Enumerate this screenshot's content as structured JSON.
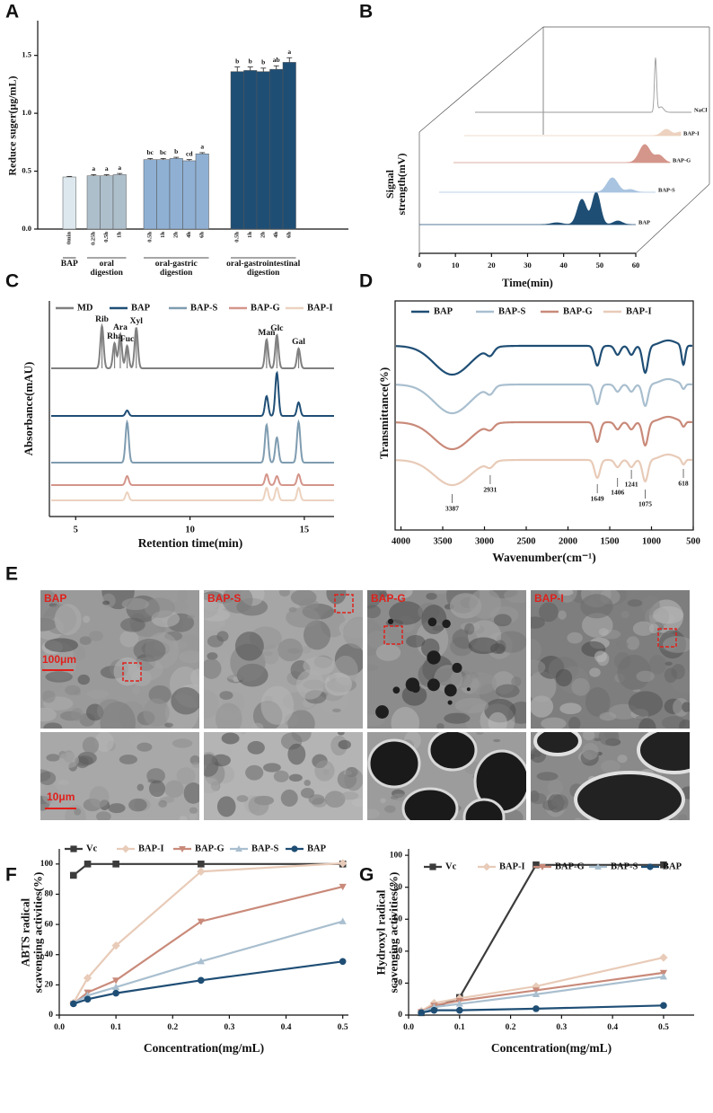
{
  "chart_data": [
    {
      "label": "A",
      "type": "bar",
      "ylabel": "Reduce suger(μg/mL)",
      "ylim": [
        0,
        1.8
      ],
      "yticks": [
        {
          "value": 0,
          "label": "0.0"
        },
        {
          "value": 0.5,
          "label": "0.5"
        },
        {
          "value": 1,
          "label": "1.0"
        },
        {
          "value": 1.5,
          "label": "1.5"
        }
      ],
      "groups": [
        {
          "name": "BAP",
          "color": "#dde8ee",
          "categories": [
            "0min"
          ],
          "values": [
            0.45
          ],
          "errors": [
            0.005
          ]
        },
        {
          "name": "oral\ndigestion",
          "color": "#aebfcc",
          "categories": [
            "0.25h",
            "0.5h",
            "1h"
          ],
          "values": [
            0.46,
            0.46,
            0.47
          ],
          "errors": [
            0.01,
            0.01,
            0.01
          ],
          "letters": [
            "a",
            "a",
            "a"
          ]
        },
        {
          "name": "oral-gastric\ndigestion",
          "color": "#8fb0d3",
          "categories": [
            "0.5h",
            "1h",
            "2h",
            "4h",
            "6h"
          ],
          "values": [
            0.6,
            0.6,
            0.61,
            0.59,
            0.65
          ],
          "errors": [
            0.01,
            0.01,
            0.01,
            0.01,
            0.01
          ],
          "letters": [
            "bc",
            "bc",
            "b",
            "cd",
            "a"
          ]
        },
        {
          "name": "oral-gastrointestinal\ndigestion",
          "color": "#1f4e75",
          "categories": [
            "0.5h",
            "1h",
            "2h",
            "4h",
            "6h"
          ],
          "values": [
            1.36,
            1.37,
            1.36,
            1.38,
            1.44
          ],
          "errors": [
            0.04,
            0.03,
            0.03,
            0.03,
            0.04
          ],
          "letters": [
            "b",
            "b",
            "b",
            "ab",
            "a"
          ]
        }
      ]
    },
    {
      "label": "B",
      "type": "chromatogram3d",
      "xlabel": "Time(min)",
      "ylabel": "Signal\nstrength(mV)",
      "xlim": [
        0,
        60
      ],
      "xticks": [
        0,
        10,
        20,
        30,
        40,
        50,
        60
      ],
      "series": [
        {
          "name": "BAP",
          "color": "#1f4e75"
        },
        {
          "name": "BAP-S",
          "color": "#a9c4e0"
        },
        {
          "name": "BAP-G",
          "color": "#d4958a"
        },
        {
          "name": "BAP-I",
          "color": "#ecd2bf"
        },
        {
          "name": "NaCl",
          "color": "#9a9a9a"
        }
      ]
    },
    {
      "label": "C",
      "type": "chromatogram",
      "xlabel": "Retention time(min)",
      "ylabel": "Absorbance(mAU)",
      "xlim": [
        3.85,
        16.3
      ],
      "xticks": [
        5,
        10,
        15
      ],
      "series": [
        {
          "name": "MD",
          "color": "#808080"
        },
        {
          "name": "BAP",
          "color": "#1f4e75"
        },
        {
          "name": "BAP-S",
          "color": "#7f9cb0"
        },
        {
          "name": "BAP-G",
          "color": "#d4958a"
        },
        {
          "name": "BAP-I",
          "color": "#ecd2bf"
        }
      ],
      "peaks": [
        {
          "label": "Rib",
          "x": 6.15
        },
        {
          "label": "Rha",
          "x": 6.7
        },
        {
          "label": "Ara",
          "x": 6.95
        },
        {
          "label": "Fuc",
          "x": 7.25
        },
        {
          "label": "Xyl",
          "x": 7.65
        },
        {
          "label": "Man",
          "x": 13.35
        },
        {
          "label": "Glc",
          "x": 13.8
        },
        {
          "label": "Gal",
          "x": 14.75
        }
      ]
    },
    {
      "label": "D",
      "type": "spectrum",
      "xlabel": "Wavenumber(cm⁻¹)",
      "ylabel": "Transmittance(%)",
      "xlim": [
        4070,
        500
      ],
      "xticks": [
        4000,
        3500,
        3000,
        2500,
        2000,
        1500,
        1000,
        500
      ],
      "series": [
        {
          "name": "BAP",
          "color": "#1f4e75"
        },
        {
          "name": "BAP-S",
          "color": "#a9bfcf"
        },
        {
          "name": "BAP-G",
          "color": "#c98a7a"
        },
        {
          "name": "BAP-I",
          "color": "#e8cbb8"
        }
      ],
      "annotations": [
        3387,
        2931,
        1649,
        1406,
        1241,
        1075,
        618
      ]
    },
    {
      "label": "E",
      "type": "micrograph",
      "panels": [
        "BAP",
        "BAP-S",
        "BAP-G",
        "BAP-I"
      ],
      "scale_bars": [
        "100μm",
        "10μm"
      ]
    },
    {
      "label": "F",
      "type": "line",
      "xlabel": "Concentration(mg/mL)",
      "ylabel": "ABTS radical\nscavenging activities(%)",
      "x": [
        0.025,
        0.05,
        0.1,
        0.25,
        0.5
      ],
      "xlim": [
        0,
        0.51
      ],
      "xticks": [
        {
          "value": 0,
          "label": "0.0"
        },
        0.1,
        0.2,
        0.3,
        0.4,
        0.5
      ],
      "ylim": [
        0,
        110
      ],
      "yticks": [
        0,
        20,
        40,
        60,
        80,
        100
      ],
      "series": [
        {
          "name": "Vc",
          "color": "#3c3c3c",
          "marker": "square",
          "values": [
            92.5,
            100,
            100,
            100,
            100
          ]
        },
        {
          "name": "BAP-I",
          "color": "#e8cbb8",
          "marker": "diamond",
          "values": [
            8,
            24.5,
            46,
            95,
            100.5
          ]
        },
        {
          "name": "BAP-G",
          "color": "#c98a7a",
          "marker": "triangle-down",
          "values": [
            7.5,
            15,
            23,
            62,
            85
          ]
        },
        {
          "name": "BAP-S",
          "color": "#a9bfcf",
          "marker": "triangle",
          "values": [
            8,
            13,
            18.5,
            35.5,
            62
          ]
        },
        {
          "name": "BAP",
          "color": "#1f4e75",
          "marker": "circle",
          "values": [
            7.5,
            10.5,
            14.5,
            23,
            35.5
          ]
        }
      ]
    },
    {
      "label": "G",
      "type": "line",
      "xlabel": "Concentration(mg/mL)",
      "ylabel": "Hydroxyl radical\nscavenging activities(%)",
      "x": [
        0.025,
        0.05,
        0.1,
        0.25,
        0.5
      ],
      "xlim": [
        0,
        0.56
      ],
      "xticks": [
        {
          "value": 0,
          "label": "0.0"
        },
        0.1,
        0.2,
        0.3,
        0.4,
        0.5
      ],
      "ylim": [
        0,
        104
      ],
      "yticks": [
        0,
        20,
        40,
        60,
        80,
        100
      ],
      "series": [
        {
          "name": "Vc",
          "color": "#3c3c3c",
          "marker": "square",
          "values": [
            1.5,
            4.5,
            11,
            94,
            94
          ]
        },
        {
          "name": "BAP-I",
          "color": "#e8cbb8",
          "marker": "diamond",
          "values": [
            2.5,
            7.5,
            10.5,
            18,
            36
          ]
        },
        {
          "name": "BAP-G",
          "color": "#c98a7a",
          "marker": "triangle-down",
          "values": [
            2,
            6,
            9,
            15.5,
            26.5
          ]
        },
        {
          "name": "BAP-S",
          "color": "#a9bfcf",
          "marker": "triangle",
          "values": [
            2,
            5,
            7,
            13,
            24
          ]
        },
        {
          "name": "BAP",
          "color": "#1f4e75",
          "marker": "circle",
          "values": [
            1.5,
            3,
            3,
            4,
            6
          ]
        }
      ]
    }
  ]
}
